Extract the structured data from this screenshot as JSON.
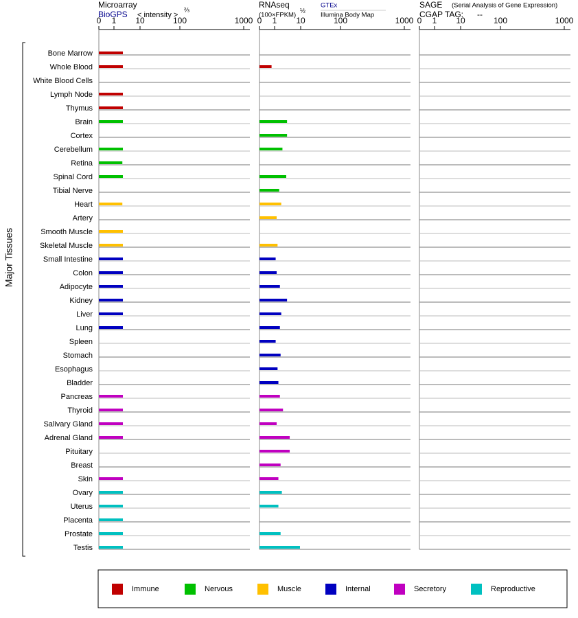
{
  "chart_data": {
    "type": "bar",
    "y_label": "Major Tissues",
    "xlim": [
      0,
      1000
    ],
    "xticks": [
      0,
      1,
      10,
      100,
      1000
    ],
    "categories": [
      "Bone Marrow",
      "Whole Blood",
      "White Blood Cells",
      "Lymph Node",
      "Thymus",
      "Brain",
      "Cortex",
      "Cerebellum",
      "Retina",
      "Spinal Cord",
      "Tibial Nerve",
      "Heart",
      "Artery",
      "Smooth Muscle",
      "Skeletal Muscle",
      "Small Intestine",
      "Colon",
      "Adipocyte",
      "Kidney",
      "Liver",
      "Lung",
      "Spleen",
      "Stomach",
      "Esophagus",
      "Bladder",
      "Pancreas",
      "Thyroid",
      "Salivary Gland",
      "Adrenal Gland",
      "Pituitary",
      "Breast",
      "Skin",
      "Ovary",
      "Uterus",
      "Placenta",
      "Prostate",
      "Testis"
    ],
    "category_groups": [
      0,
      0,
      0,
      0,
      0,
      1,
      1,
      1,
      1,
      1,
      1,
      2,
      2,
      2,
      2,
      3,
      3,
      3,
      3,
      3,
      3,
      3,
      3,
      3,
      3,
      4,
      4,
      4,
      4,
      4,
      4,
      4,
      5,
      5,
      5,
      5,
      5
    ],
    "groups": [
      {
        "name": "Immune",
        "color": "#c00000"
      },
      {
        "name": "Nervous",
        "color": "#00c000"
      },
      {
        "name": "Muscle",
        "color": "#ffc000"
      },
      {
        "name": "Internal",
        "color": "#0000c0"
      },
      {
        "name": "Secretory",
        "color": "#c000c0"
      },
      {
        "name": "Reproductive",
        "color": "#00c0c0"
      }
    ],
    "panels": [
      {
        "title": "Microarray",
        "source": "BioGPS",
        "unit": "< intensity >",
        "exponent": "⅔",
        "values": [
          2.2,
          2.2,
          null,
          2.2,
          2.2,
          2.2,
          null,
          2.2,
          2.1,
          2.2,
          null,
          2.1,
          null,
          2.2,
          2.2,
          2.2,
          2.2,
          2.2,
          2.2,
          2.2,
          2.2,
          null,
          null,
          null,
          null,
          2.2,
          2.2,
          2.2,
          2.2,
          null,
          null,
          2.2,
          2.2,
          2.2,
          2.2,
          2.2,
          2.2
        ]
      },
      {
        "title": "RNAseq",
        "unit": "(100×FPKM)",
        "exponent": "½",
        "source": "GTEx",
        "source2": "Illumina Body Map",
        "values": [
          null,
          0.8,
          null,
          null,
          null,
          3,
          3,
          2,
          null,
          2.8,
          1.5,
          1.8,
          1.2,
          null,
          1.3,
          1.1,
          1.2,
          1.6,
          3,
          1.8,
          1.6,
          1.1,
          1.7,
          1.3,
          1.4,
          1.6,
          2.1,
          1.2,
          3.8,
          3.8,
          1.7,
          1.4,
          1.9,
          1.4,
          null,
          1.7,
          9.4
        ]
      },
      {
        "title": "SAGE",
        "subtitle": "(Serial Analysis of Gene Expression)",
        "tag_label": "CGAP TAG:",
        "tag": "--"
      }
    ]
  }
}
